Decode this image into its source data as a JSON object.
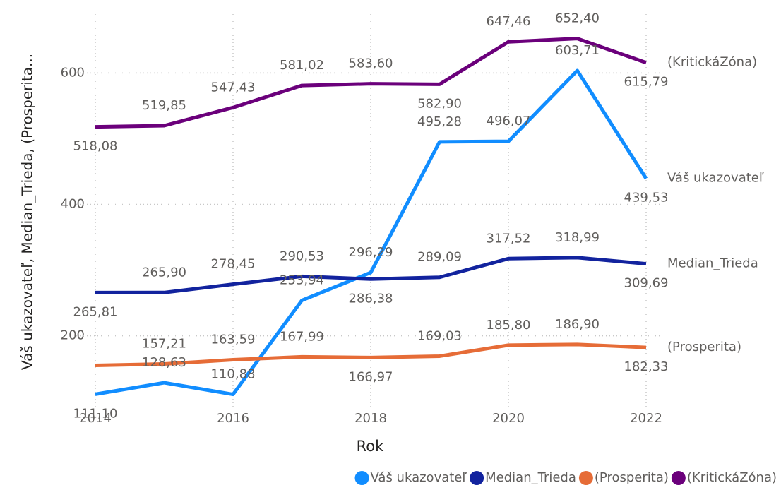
{
  "chart_data": {
    "type": "line",
    "x_label": "Rok",
    "y_label": "Váš ukazovateľ, Median_Trieda, (Prosperita...",
    "x": [
      2014,
      2015,
      2016,
      2017,
      2018,
      2019,
      2020,
      2021,
      2022
    ],
    "xlim": [
      2014,
      2022
    ],
    "xticks": [
      2014,
      2016,
      2018,
      2020,
      2022
    ],
    "ylim": [
      90,
      695
    ],
    "yticks": [
      200,
      400,
      600
    ],
    "grid": true,
    "legend": "bottom-right",
    "series": [
      {
        "name": "Váš ukazovateľ",
        "color": "#118dff",
        "values": [
          111.1,
          128.63,
          110.88,
          253.94,
          296.29,
          495.28,
          496.07,
          603.71,
          439.53
        ],
        "value_labels": [
          "111,10",
          "128,63",
          "110,88",
          "253,94",
          "296,29",
          "495,28",
          "496,07",
          "603,71",
          "439,53"
        ]
      },
      {
        "name": "Median_Trieda",
        "color": "#12239e",
        "values": [
          265.81,
          265.9,
          278.45,
          290.53,
          286.38,
          289.09,
          317.52,
          318.99,
          309.69
        ],
        "value_labels": [
          "265,81",
          "265,90",
          "278,45",
          "290,53",
          "286,38",
          "289,09",
          "317,52",
          "318,99",
          "309,69"
        ]
      },
      {
        "name": "(Prosperita)",
        "color": "#e66c37",
        "values": [
          155,
          157.21,
          163.59,
          167.99,
          166.97,
          169.03,
          185.8,
          186.9,
          182.33
        ],
        "value_labels": [
          null,
          "157,21",
          "163,59",
          "167,99",
          "166,97",
          "169,03",
          "185,80",
          "186,90",
          "182,33"
        ]
      },
      {
        "name": "(KritickáZóna)",
        "color": "#6b007b",
        "values": [
          518.08,
          519.85,
          547.43,
          581.02,
          583.6,
          582.9,
          647.46,
          652.4,
          615.79
        ],
        "value_labels": [
          "518,08",
          "519,85",
          "547,43",
          "581,02",
          "583,60",
          "582,90",
          "647,46",
          "652,40",
          "615,79"
        ]
      }
    ]
  }
}
